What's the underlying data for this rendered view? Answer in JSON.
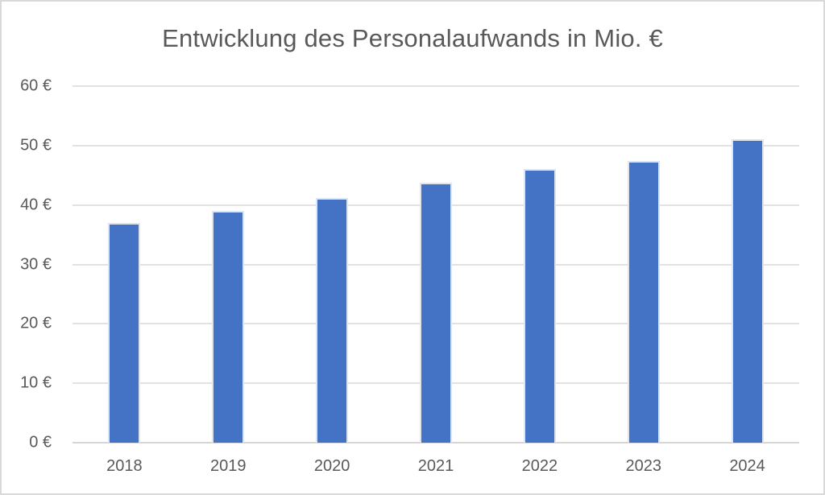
{
  "title": "Entwicklung des Personalaufwands in Mio. €",
  "chart_data": {
    "type": "bar",
    "title": "Entwicklung des Personalaufwands in Mio. €",
    "categories": [
      "2018",
      "2019",
      "2020",
      "2021",
      "2022",
      "2023",
      "2024"
    ],
    "values": [
      37,
      39,
      41.2,
      43.7,
      46,
      47.4,
      51
    ],
    "xlabel": "",
    "ylabel": "",
    "ylim": [
      0,
      60
    ],
    "ytick_step": 10,
    "ytick_labels": [
      "0 €",
      "10 €",
      "20 €",
      "30 €",
      "40 €",
      "50 €",
      "60 €"
    ],
    "grid": true,
    "legend": false,
    "colors": {
      "bar_fill": "#4472C4",
      "bar_border": "#dde4f2",
      "gridline": "#e2e2e2",
      "axis_line": "#d6d6d6",
      "text": "#595959",
      "frame_border": "#d9d9d9",
      "background": "#ffffff"
    }
  }
}
